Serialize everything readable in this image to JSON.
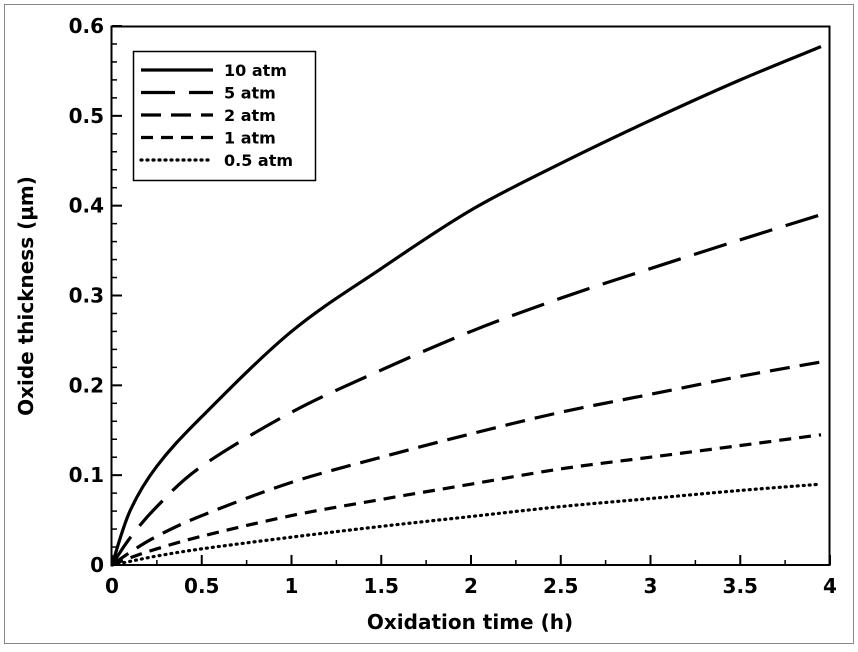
{
  "chart_data": {
    "type": "line",
    "title": "",
    "xlabel": "Oxidation time (h)",
    "ylabel": "Oxide thickness (µm)",
    "xlim": [
      0,
      4
    ],
    "ylim": [
      0,
      0.6
    ],
    "xticks": [
      "0",
      "0.5",
      "1",
      "1.5",
      "2",
      "2.5",
      "3",
      "3.5",
      "4"
    ],
    "xtick_values": [
      0,
      0.5,
      1,
      1.5,
      2,
      2.5,
      3,
      3.5,
      4
    ],
    "yticks": [
      "0",
      "0.1",
      "0.2",
      "0.3",
      "0.4",
      "0.5",
      "0.6"
    ],
    "ytick_values": [
      0,
      0.1,
      0.2,
      0.3,
      0.4,
      0.5,
      0.6
    ],
    "x_minor_step": 0.25,
    "y_minor_step": 0.02,
    "grid": false,
    "legend_position": "top-left",
    "x": [
      0,
      0.1,
      0.25,
      0.5,
      1,
      1.5,
      2,
      2.5,
      3,
      3.5,
      3.95
    ],
    "series": [
      {
        "name": "10 atm",
        "style": "solid",
        "values": [
          0,
          0.06,
          0.11,
          0.165,
          0.26,
          0.33,
          0.395,
          0.447,
          0.495,
          0.54,
          0.577
        ]
      },
      {
        "name": "5 atm",
        "style": "long-dash",
        "values": [
          0,
          0.03,
          0.065,
          0.11,
          0.17,
          0.217,
          0.26,
          0.297,
          0.33,
          0.362,
          0.39
        ]
      },
      {
        "name": "2 atm",
        "style": "dash",
        "values": [
          0,
          0.014,
          0.032,
          0.055,
          0.092,
          0.12,
          0.146,
          0.17,
          0.19,
          0.21,
          0.226
        ]
      },
      {
        "name": "1 atm",
        "style": "short-dash",
        "values": [
          0,
          0.008,
          0.018,
          0.032,
          0.055,
          0.073,
          0.09,
          0.107,
          0.12,
          0.133,
          0.145
        ]
      },
      {
        "name": "0.5 atm",
        "style": "dotted",
        "values": [
          0,
          0.004,
          0.01,
          0.018,
          0.031,
          0.043,
          0.054,
          0.065,
          0.074,
          0.083,
          0.09
        ]
      }
    ],
    "colors": {
      "line": "#000000",
      "frame": "#000000",
      "border": "#888888"
    }
  }
}
